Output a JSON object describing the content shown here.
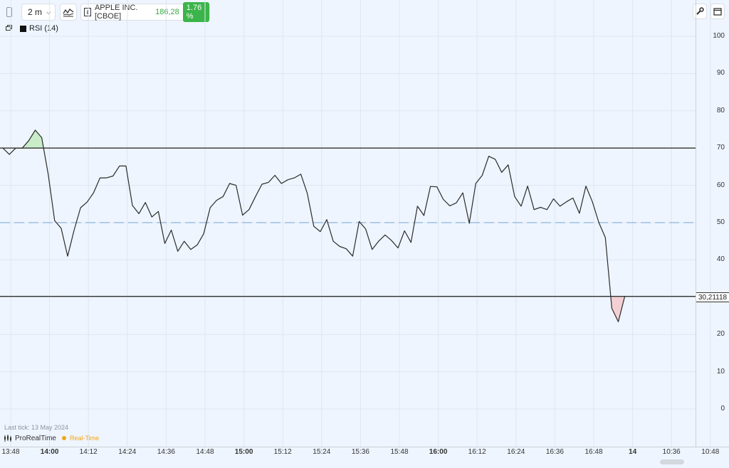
{
  "toolbar": {
    "timeframe": "2 m",
    "instrument": "APPLE INC. [CBOE]",
    "price": "186,28",
    "change": "1.76 %"
  },
  "indicator": {
    "label": "RSI (14)"
  },
  "current_value_label": "30,21118",
  "footer": {
    "last_tick": "Last tick: 13 May 2024",
    "brand": "ProRealTime",
    "realtime": "Real-Time"
  },
  "colors": {
    "background": "#eef5fe",
    "line": "#2b2b2b",
    "overbought_fill": "#c9ecc9",
    "oversold_fill": "#f3d0d3",
    "midline": "#8fb3dc",
    "positive_badge": "#3bb54a",
    "price_text": "#3aa845",
    "realtime_dot": "#f2a51a"
  },
  "chart_data": {
    "type": "line",
    "title": "RSI (14)",
    "ylim": [
      -8,
      107
    ],
    "yticks": [
      "100",
      "90",
      "80",
      "70",
      "60",
      "50",
      "40",
      "30",
      "20",
      "10",
      "0"
    ],
    "reference_lines": [
      {
        "value": 70,
        "style": "solid"
      },
      {
        "value": 50,
        "style": "dashed"
      },
      {
        "value": 30.21118,
        "style": "solid"
      }
    ],
    "x_start": "13:48",
    "x_step_minutes": 2,
    "x_ticks": [
      {
        "label": "13:48",
        "bold": false
      },
      {
        "label": "14:00",
        "bold": true
      },
      {
        "label": "14:12",
        "bold": false
      },
      {
        "label": "14:24",
        "bold": false
      },
      {
        "label": "14:36",
        "bold": false
      },
      {
        "label": "14:48",
        "bold": false
      },
      {
        "label": "15:00",
        "bold": true
      },
      {
        "label": "15:12",
        "bold": false
      },
      {
        "label": "15:24",
        "bold": false
      },
      {
        "label": "15:36",
        "bold": false
      },
      {
        "label": "15:48",
        "bold": false
      },
      {
        "label": "16:00",
        "bold": true
      },
      {
        "label": "16:12",
        "bold": false
      },
      {
        "label": "16:24",
        "bold": false
      },
      {
        "label": "16:36",
        "bold": false
      },
      {
        "label": "16:48",
        "bold": false
      },
      {
        "label": "14",
        "bold": true
      },
      {
        "label": "10:36",
        "bold": false
      },
      {
        "label": "10:48",
        "bold": false
      }
    ],
    "series": [
      {
        "values": [
          70,
          68.3,
          70,
          70,
          72,
          74.8,
          72.8,
          63,
          50.5,
          48.5,
          41,
          48,
          54,
          55.5,
          58,
          62,
          62,
          62.5,
          65.2,
          65.2,
          54.6,
          52.4,
          55.4,
          51.5,
          53,
          44.4,
          48,
          42.3,
          45,
          42.8,
          44,
          47,
          54,
          56,
          57,
          60.5,
          60,
          52,
          53.5,
          57,
          60.3,
          60.8,
          62.7,
          60.5,
          61.5,
          62,
          63,
          57.8,
          49,
          47.6,
          50.8,
          45,
          43.6,
          43,
          41,
          50.3,
          48.3,
          42.8,
          45,
          46.7,
          45.2,
          43.2,
          47.8,
          44.7,
          54.4,
          51.9,
          59.7,
          59.6,
          56.2,
          54.5,
          55.3,
          58,
          49.8,
          60.5,
          62.7,
          67.8,
          67,
          63.5,
          65.5,
          57,
          54.4,
          59.8,
          53.5,
          54.1,
          53.5,
          56.4,
          54.4,
          55.6,
          56.6,
          52.5,
          59.8,
          55.6,
          50,
          46,
          27,
          23.4,
          30.21118
        ]
      }
    ]
  }
}
